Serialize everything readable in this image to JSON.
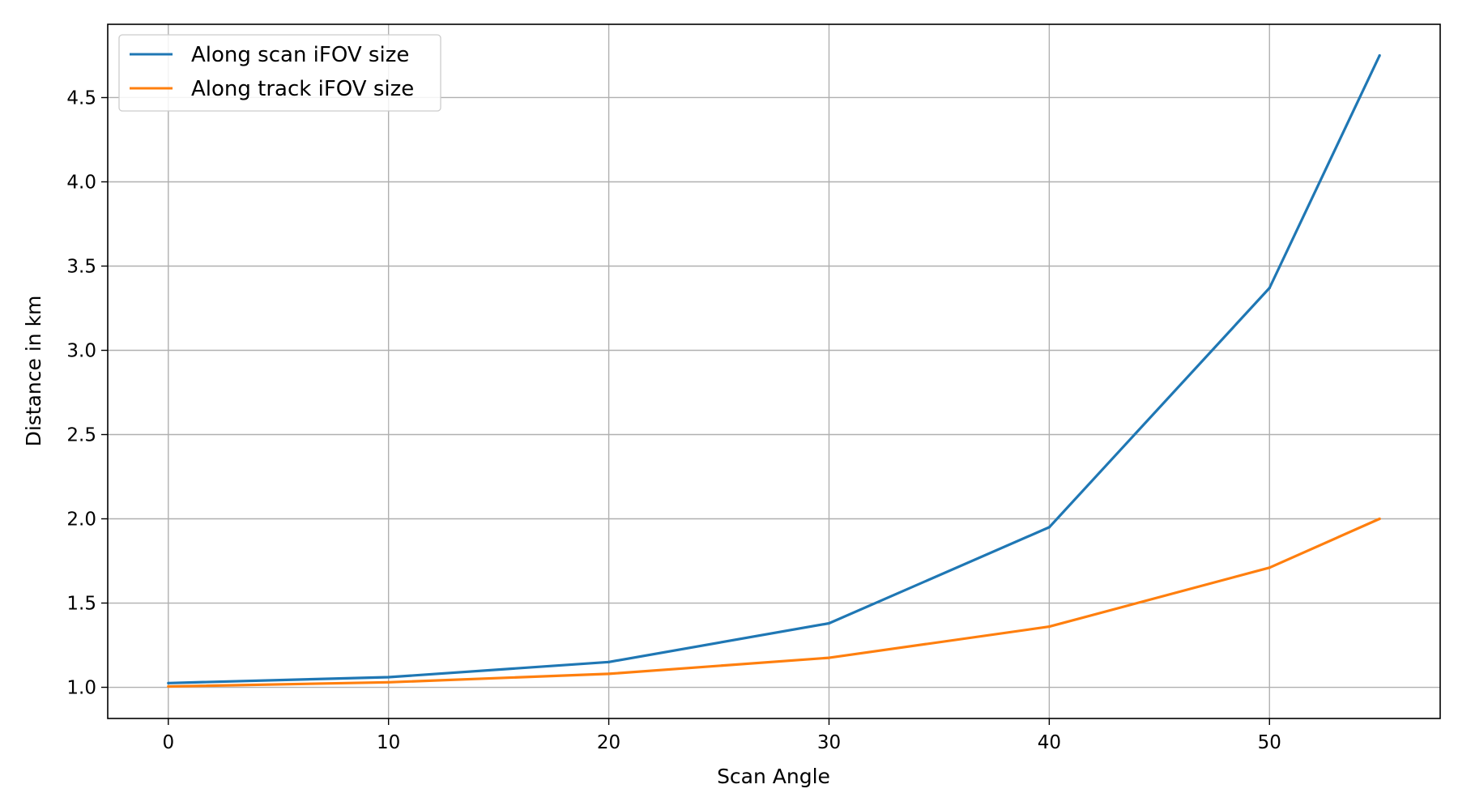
{
  "chart_data": {
    "type": "line",
    "title": "",
    "xlabel": "Scan Angle",
    "ylabel": "Distance in km",
    "xlim": [
      -2.75,
      57.75
    ],
    "ylim": [
      0.815,
      4.935
    ],
    "xticks": [
      0,
      10,
      20,
      30,
      40,
      50
    ],
    "xtick_labels": [
      "0",
      "10",
      "20",
      "30",
      "40",
      "50"
    ],
    "yticks": [
      1.0,
      1.5,
      2.0,
      2.5,
      3.0,
      3.5,
      4.0,
      4.5
    ],
    "ytick_labels": [
      "1.0",
      "1.5",
      "2.0",
      "2.5",
      "3.0",
      "3.5",
      "4.0",
      "4.5"
    ],
    "grid": true,
    "legend_position": "top-left",
    "x": [
      0,
      10,
      20,
      30,
      40,
      50,
      55
    ],
    "series": [
      {
        "name": "Along scan iFOV size",
        "color": "#1f77b4",
        "values": [
          1.025,
          1.06,
          1.15,
          1.38,
          1.95,
          3.37,
          4.75
        ]
      },
      {
        "name": "Along track iFOV size",
        "color": "#ff7f0e",
        "values": [
          1.005,
          1.03,
          1.08,
          1.175,
          1.36,
          1.71,
          2.0
        ]
      }
    ]
  }
}
